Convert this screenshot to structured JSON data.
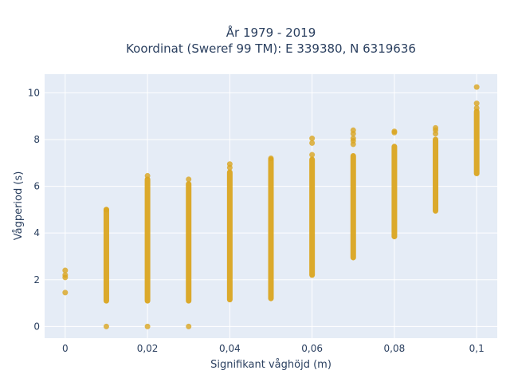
{
  "chart_data": {
    "type": "scatter",
    "title_lines": [
      "År 1979 - 2019",
      "Koordinat (Sweref 99 TM): E 339380, N 6319636"
    ],
    "xlabel": "Signifikant våghöjd (m)",
    "ylabel": "Vågperiod (s)",
    "xlim": [
      -0.005,
      0.105
    ],
    "ylim": [
      -0.5,
      10.8
    ],
    "x_ticks": [
      {
        "value": 0,
        "label": "0"
      },
      {
        "value": 0.02,
        "label": "0,02"
      },
      {
        "value": 0.04,
        "label": "0,04"
      },
      {
        "value": 0.06,
        "label": "0,06"
      },
      {
        "value": 0.08,
        "label": "0,08"
      },
      {
        "value": 0.1,
        "label": "0,1"
      }
    ],
    "y_ticks": [
      {
        "value": 0,
        "label": "0"
      },
      {
        "value": 2,
        "label": "2"
      },
      {
        "value": 4,
        "label": "4"
      },
      {
        "value": 6,
        "label": "6"
      },
      {
        "value": 8,
        "label": "8"
      },
      {
        "value": 10,
        "label": "10"
      }
    ],
    "grid": true,
    "point_color": "#DAA520",
    "columns": [
      {
        "x": 0.0,
        "band": [],
        "points": [
          1.45,
          2.1,
          2.2,
          2.4
        ]
      },
      {
        "x": 0.01,
        "band": [
          1.1,
          5.0
        ],
        "points": [
          0.0,
          5.0
        ]
      },
      {
        "x": 0.02,
        "band": [
          1.1,
          6.3
        ],
        "points": [
          0.0,
          6.45
        ]
      },
      {
        "x": 0.03,
        "band": [
          1.1,
          6.1
        ],
        "points": [
          0.0,
          6.3
        ]
      },
      {
        "x": 0.04,
        "band": [
          1.15,
          6.6
        ],
        "points": [
          6.8,
          6.95
        ]
      },
      {
        "x": 0.05,
        "band": [
          1.2,
          7.15
        ],
        "points": [
          7.2
        ]
      },
      {
        "x": 0.06,
        "band": [
          2.2,
          7.15
        ],
        "points": [
          7.35,
          7.85,
          8.05
        ]
      },
      {
        "x": 0.07,
        "band": [
          2.95,
          7.3
        ],
        "points": [
          7.8,
          7.95,
          8.05,
          8.25,
          8.4
        ]
      },
      {
        "x": 0.08,
        "band": [
          3.85,
          7.7
        ],
        "points": [
          8.3,
          8.35
        ]
      },
      {
        "x": 0.09,
        "band": [
          4.95,
          8.0
        ],
        "points": [
          8.25,
          8.4,
          8.5
        ]
      },
      {
        "x": 0.1,
        "band": [
          6.55,
          9.2
        ],
        "points": [
          9.35,
          9.55,
          10.25
        ]
      }
    ]
  }
}
